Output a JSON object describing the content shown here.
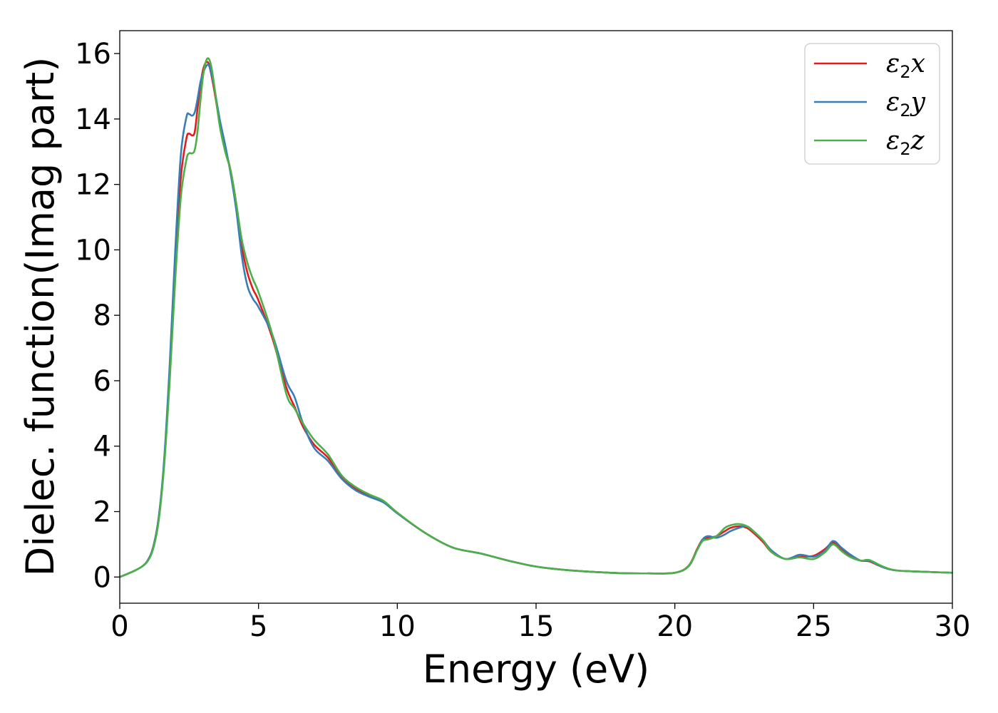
{
  "chart_data": {
    "type": "line",
    "xlabel": "Energy (eV)",
    "ylabel": "Dielec. function(Imag part)",
    "xlim": [
      0,
      30
    ],
    "ylim": [
      -0.8,
      16.7
    ],
    "xticks": [
      0,
      5,
      10,
      15,
      20,
      25,
      30
    ],
    "yticks": [
      0,
      2,
      4,
      6,
      8,
      10,
      12,
      14,
      16
    ],
    "grid": false,
    "legend_position": "top-right",
    "series": [
      {
        "name": "ε2x",
        "legend": {
          "base": "ε",
          "sub": "2",
          "tail": "x"
        },
        "color": "#e41a1c",
        "x": [
          0,
          0.5,
          0.8,
          1.0,
          1.2,
          1.4,
          1.6,
          1.8,
          2.0,
          2.2,
          2.4,
          2.5,
          2.6,
          2.7,
          2.8,
          2.9,
          3.0,
          3.1,
          3.2,
          3.3,
          3.4,
          3.6,
          3.8,
          4.0,
          4.2,
          4.4,
          4.6,
          4.8,
          5.0,
          5.5,
          6.0,
          6.3,
          6.6,
          7.0,
          7.5,
          8.0,
          8.5,
          9.0,
          9.5,
          10.0,
          11.0,
          12.0,
          13.0,
          14.0,
          15.0,
          16.0,
          17.0,
          18.0,
          19.0,
          20.0,
          20.5,
          20.8,
          21.0,
          21.2,
          21.5,
          21.8,
          22.0,
          22.3,
          22.6,
          22.9,
          23.2,
          23.5,
          24.0,
          24.5,
          25.0,
          25.4,
          25.7,
          26.0,
          26.3,
          26.7,
          27.0,
          27.5,
          28.0,
          29.0,
          30.0
        ],
        "y": [
          0,
          0.18,
          0.32,
          0.5,
          0.9,
          1.8,
          3.5,
          6.2,
          9.5,
          12.2,
          13.4,
          13.55,
          13.5,
          13.6,
          14.3,
          15.0,
          15.5,
          15.72,
          15.7,
          15.35,
          14.9,
          13.9,
          13.1,
          12.4,
          11.4,
          10.1,
          9.3,
          8.8,
          8.45,
          7.3,
          5.8,
          5.2,
          4.6,
          4.05,
          3.65,
          3.05,
          2.7,
          2.5,
          2.3,
          1.95,
          1.35,
          0.9,
          0.72,
          0.5,
          0.32,
          0.22,
          0.16,
          0.12,
          0.11,
          0.13,
          0.35,
          0.85,
          1.15,
          1.2,
          1.25,
          1.4,
          1.5,
          1.55,
          1.5,
          1.3,
          1.05,
          0.75,
          0.55,
          0.62,
          0.65,
          0.85,
          1.05,
          0.85,
          0.65,
          0.5,
          0.48,
          0.3,
          0.2,
          0.16,
          0.13
        ]
      },
      {
        "name": "ε2y",
        "legend": {
          "base": "ε",
          "sub": "2",
          "tail": "y"
        },
        "color": "#377eb8",
        "x": [
          0,
          0.5,
          0.8,
          1.0,
          1.2,
          1.4,
          1.6,
          1.8,
          2.0,
          2.2,
          2.4,
          2.5,
          2.6,
          2.7,
          2.8,
          2.9,
          3.0,
          3.1,
          3.2,
          3.3,
          3.4,
          3.6,
          3.8,
          4.0,
          4.2,
          4.4,
          4.6,
          4.8,
          5.0,
          5.5,
          6.0,
          6.3,
          6.6,
          7.0,
          7.5,
          8.0,
          8.5,
          9.0,
          9.5,
          10.0,
          11.0,
          12.0,
          13.0,
          14.0,
          15.0,
          16.0,
          17.0,
          18.0,
          19.0,
          20.0,
          20.5,
          20.8,
          21.0,
          21.2,
          21.5,
          21.8,
          22.0,
          22.3,
          22.6,
          22.9,
          23.2,
          23.5,
          24.0,
          24.5,
          25.0,
          25.4,
          25.7,
          26.0,
          26.3,
          26.7,
          27.0,
          27.5,
          28.0,
          29.0,
          30.0
        ],
        "y": [
          0,
          0.18,
          0.32,
          0.5,
          0.9,
          1.8,
          3.6,
          6.5,
          10.0,
          12.9,
          14.05,
          14.15,
          14.1,
          14.2,
          14.6,
          15.1,
          15.4,
          15.6,
          15.65,
          15.4,
          15.0,
          14.0,
          13.2,
          12.3,
          11.2,
          9.8,
          8.9,
          8.5,
          8.25,
          7.4,
          6.0,
          5.5,
          4.7,
          3.95,
          3.55,
          3.0,
          2.65,
          2.45,
          2.28,
          1.95,
          1.35,
          0.9,
          0.72,
          0.5,
          0.32,
          0.22,
          0.16,
          0.12,
          0.11,
          0.13,
          0.33,
          0.82,
          1.15,
          1.25,
          1.2,
          1.3,
          1.4,
          1.5,
          1.55,
          1.35,
          1.1,
          0.8,
          0.55,
          0.68,
          0.62,
          0.8,
          1.1,
          0.9,
          0.7,
          0.5,
          0.5,
          0.3,
          0.2,
          0.16,
          0.13
        ]
      },
      {
        "name": "ε2z",
        "legend": {
          "base": "ε",
          "sub": "2",
          "tail": "z"
        },
        "color": "#4daf4a",
        "x": [
          0,
          0.5,
          0.8,
          1.0,
          1.2,
          1.4,
          1.6,
          1.8,
          2.0,
          2.2,
          2.4,
          2.5,
          2.6,
          2.7,
          2.8,
          2.9,
          3.0,
          3.1,
          3.2,
          3.3,
          3.4,
          3.6,
          3.8,
          4.0,
          4.2,
          4.4,
          4.6,
          4.8,
          5.0,
          5.5,
          6.0,
          6.3,
          6.6,
          7.0,
          7.5,
          8.0,
          8.5,
          9.0,
          9.5,
          10.0,
          11.0,
          12.0,
          13.0,
          14.0,
          15.0,
          16.0,
          17.0,
          18.0,
          19.0,
          20.0,
          20.5,
          20.8,
          21.0,
          21.2,
          21.5,
          21.8,
          22.0,
          22.3,
          22.6,
          22.9,
          23.2,
          23.5,
          24.0,
          24.5,
          25.0,
          25.4,
          25.7,
          26.0,
          26.3,
          26.7,
          27.0,
          27.5,
          28.0,
          29.0,
          30.0
        ],
        "y": [
          0,
          0.18,
          0.32,
          0.48,
          0.85,
          1.7,
          3.4,
          6.0,
          9.1,
          11.6,
          12.75,
          12.95,
          12.95,
          13.05,
          13.6,
          14.5,
          15.3,
          15.75,
          15.85,
          15.6,
          15.05,
          13.8,
          13.0,
          12.4,
          11.4,
          10.3,
          9.6,
          9.1,
          8.7,
          7.4,
          5.6,
          5.15,
          4.7,
          4.2,
          3.75,
          3.1,
          2.75,
          2.52,
          2.33,
          1.97,
          1.35,
          0.9,
          0.72,
          0.5,
          0.32,
          0.22,
          0.16,
          0.12,
          0.11,
          0.13,
          0.34,
          0.82,
          1.1,
          1.15,
          1.25,
          1.5,
          1.58,
          1.62,
          1.55,
          1.35,
          1.1,
          0.75,
          0.55,
          0.6,
          0.55,
          0.75,
          1.0,
          0.8,
          0.62,
          0.5,
          0.52,
          0.32,
          0.2,
          0.16,
          0.13
        ]
      }
    ]
  }
}
